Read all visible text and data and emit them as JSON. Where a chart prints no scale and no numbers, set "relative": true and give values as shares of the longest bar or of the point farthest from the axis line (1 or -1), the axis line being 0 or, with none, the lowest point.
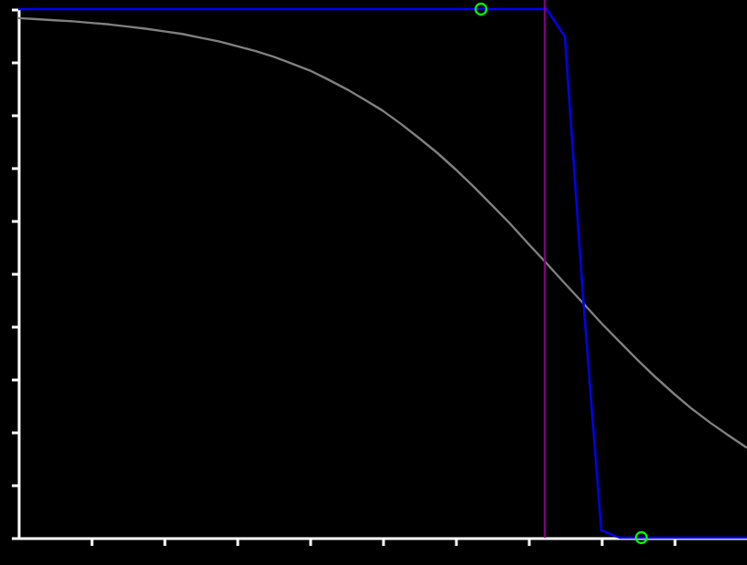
{
  "chart_data": {
    "type": "line",
    "relative": true,
    "grid": false,
    "marker": "none",
    "line_style": "solid",
    "categories": [
      null,
      null,
      null,
      null,
      null,
      null,
      null,
      null,
      null,
      null,
      null,
      null,
      null,
      null,
      null,
      null,
      null,
      null,
      null,
      null,
      null,
      null,
      null,
      null,
      null,
      null,
      null,
      null,
      null,
      null,
      null,
      null,
      null,
      null,
      null,
      null,
      null,
      null,
      null,
      null,
      null
    ],
    "series": [
      {
        "color": "#808080",
        "values": [
          0.983,
          0.981,
          0.979,
          0.977,
          0.974,
          0.971,
          0.967,
          0.963,
          0.958,
          0.953,
          0.946,
          0.939,
          0.93,
          0.921,
          0.91,
          0.897,
          0.884,
          0.867,
          0.849,
          0.829,
          0.808,
          0.783,
          0.756,
          0.728,
          0.697,
          0.664,
          0.629,
          0.594,
          0.556,
          0.519,
          0.481,
          0.444,
          0.406,
          0.371,
          0.336,
          0.303,
          0.272,
          0.243,
          0.217,
          0.193,
          0.17
        ]
      },
      {
        "color": "#0000ff",
        "values": [
          1,
          1,
          1,
          1,
          1,
          1,
          1,
          1,
          1,
          1,
          1,
          1,
          1,
          1,
          1,
          1,
          1,
          1,
          1,
          1,
          1,
          1,
          1,
          1,
          1,
          1,
          1,
          1,
          1,
          1,
          0.948,
          0.455,
          0.014,
          0,
          0,
          0,
          0,
          0,
          0,
          0,
          0
        ]
      }
    ]
  }
}
